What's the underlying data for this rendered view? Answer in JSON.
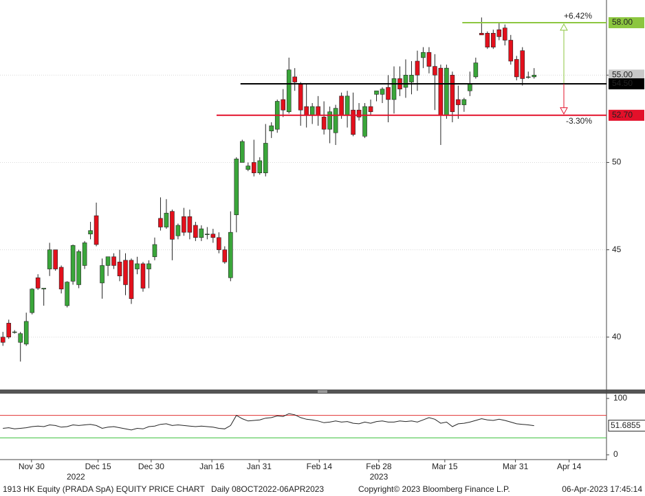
{
  "chart_data": [
    {
      "type": "candlestick",
      "ylim": [
        37,
        59.3
      ],
      "yticks": [
        40,
        45,
        50,
        {
          "value": 55,
          "label": "55.00"
        }
      ],
      "grid": true,
      "xlim": [
        -0.5,
        103.4
      ],
      "xticks": [
        {
          "value": 4.9,
          "label": "Nov 30"
        },
        {
          "value": 16.3,
          "label": "Dec 15"
        },
        {
          "value": 25.4,
          "label": "Dec 30"
        },
        {
          "value": 35.8,
          "label": "Jan 16"
        },
        {
          "value": 43.9,
          "label": "Jan 31"
        },
        {
          "value": 54.2,
          "label": "Feb 14"
        },
        {
          "value": 64.4,
          "label": "Feb 28"
        },
        {
          "value": 75.7,
          "label": "Mar 15"
        },
        {
          "value": 87.8,
          "label": "Mar 31"
        },
        {
          "value": 97.0,
          "label": "Apr 14"
        }
      ],
      "year_labels": [
        {
          "value": 12.5,
          "label": "2022"
        },
        {
          "value": 64.4,
          "label": "2023"
        }
      ],
      "up_color": "#3aa63a",
      "down_color": "#e3101c",
      "open": [
        40.0,
        40.8,
        40.3,
        39.7,
        39.6,
        41.4,
        43.4,
        42.75,
        43.9,
        45.0,
        44.0,
        41.8,
        43.2,
        43.0,
        44.1,
        45.9,
        46.95,
        43.1,
        44.1,
        44.6,
        44.3,
        44.4,
        44.4,
        43.9,
        44.2,
        43.9,
        44.6,
        46.8,
        46.3,
        47.2,
        45.8,
        46.9,
        46.9,
        46.4,
        45.7,
        45.9,
        45.9,
        45.7,
        45.0,
        43.4,
        47.0,
        50.0,
        49.6,
        50.0,
        49.4,
        49.4,
        51.8,
        51.9,
        53.6,
        52.9,
        54.9,
        54.5,
        53.2,
        52.7,
        53.2,
        52.6,
        51.9,
        51.7,
        53.8,
        52.7,
        53.0,
        53.0,
        51.5,
        53.2,
        53.9,
        53.9,
        54.3,
        53.6,
        54.8,
        54.3,
        54.6,
        55.8,
        56.0,
        56.3,
        55.5,
        55.4,
        52.7,
        55.0,
        53.6,
        53.3,
        54.1,
        54.9,
        57.4,
        57.4,
        57.4,
        57.6,
        57.7,
        57.0,
        55.9,
        56.4,
        54.9,
        54.9
      ],
      "high": [
        40.3,
        41.0,
        40.4,
        40.3,
        41.4,
        42.8,
        43.6,
        42.8,
        45.4,
        45.0,
        44.1,
        43.2,
        45.3,
        45.0,
        45.5,
        46.6,
        47.7,
        44.5,
        44.6,
        44.8,
        45.0,
        44.8,
        44.5,
        44.6,
        44.3,
        44.4,
        45.7,
        48.0,
        47.9,
        47.3,
        46.5,
        47.4,
        47.3,
        46.6,
        46.4,
        46.3,
        46.2,
        46.0,
        45.2,
        47.2,
        50.3,
        51.3,
        50.0,
        51.3,
        50.3,
        52.2,
        52.3,
        53.6,
        54.2,
        56.0,
        55.4,
        54.6,
        54.5,
        53.4,
        53.8,
        53.5,
        53.2,
        53.3,
        54.0,
        54.1,
        54.0,
        53.4,
        53.4,
        53.6,
        54.1,
        54.3,
        55.0,
        55.5,
        55.5,
        55.9,
        55.8,
        56.4,
        56.6,
        56.6,
        56.2,
        55.6,
        55.6,
        55.2,
        54.4,
        53.7,
        55.2,
        56.0,
        58.3,
        57.5,
        57.6,
        58.0,
        57.9,
        57.3,
        56.1,
        56.6,
        55.2,
        55.4
      ],
      "low": [
        39.5,
        39.9,
        40.2,
        38.6,
        39.5,
        41.3,
        42.7,
        41.8,
        43.5,
        43.8,
        42.5,
        41.7,
        43.0,
        42.8,
        43.9,
        45.6,
        45.2,
        42.2,
        43.5,
        43.9,
        43.2,
        42.4,
        41.9,
        43.6,
        42.6,
        42.8,
        44.4,
        46.1,
        46.2,
        44.4,
        45.6,
        45.8,
        45.6,
        45.5,
        45.5,
        45.6,
        45.4,
        44.8,
        44.2,
        43.2,
        46.0,
        50.0,
        49.5,
        49.2,
        49.3,
        49.2,
        51.4,
        51.7,
        52.6,
        52.8,
        54.1,
        52.1,
        52.0,
        52.2,
        52.1,
        51.6,
        51.1,
        51.0,
        52.5,
        52.0,
        51.5,
        52.4,
        51.4,
        52.7,
        53.5,
        53.4,
        52.3,
        52.8,
        53.8,
        53.7,
        53.9,
        54.1,
        55.4,
        55.1,
        53.0,
        51.0,
        52.5,
        52.3,
        52.5,
        52.9,
        53.8,
        54.8,
        57.3,
        56.5,
        56.5,
        57.0,
        56.7,
        55.6,
        54.7,
        54.4,
        54.8,
        54.8
      ],
      "close": [
        39.7,
        40.0,
        40.3,
        40.2,
        40.9,
        42.75,
        42.8,
        42.8,
        45.0,
        43.9,
        42.75,
        43.15,
        45.25,
        44.9,
        45.4,
        46.1,
        45.3,
        44.1,
        44.6,
        44.1,
        43.5,
        43.0,
        42.2,
        44.2,
        42.8,
        44.2,
        45.3,
        46.3,
        47.1,
        45.6,
        46.4,
        46.0,
        46.0,
        45.7,
        46.2,
        45.9,
        45.7,
        45.0,
        44.3,
        46.0,
        50.2,
        51.2,
        49.8,
        49.4,
        50.1,
        51.1,
        52.1,
        53.5,
        53.0,
        55.3,
        54.6,
        53.0,
        52.7,
        53.2,
        52.7,
        51.9,
        52.9,
        53.1,
        52.7,
        53.8,
        51.6,
        52.6,
        53.2,
        52.9,
        54.1,
        54.2,
        53.6,
        54.8,
        54.2,
        55.0,
        55.0,
        55.0,
        56.3,
        55.5,
        55.0,
        52.7,
        55.4,
        52.9,
        53.3,
        53.6,
        54.5,
        55.7,
        57.3,
        56.6,
        56.6,
        57.2,
        57.0,
        55.8,
        54.9,
        54.8,
        54.9,
        55.0
      ],
      "levels": [
        {
          "value": 58,
          "label": "58.00",
          "color": "#8cc63f",
          "x_start": 78.7,
          "change_label": "+6.42%"
        },
        {
          "value": 54.5,
          "label": "54.50",
          "color": "#000000",
          "x_start": 40.7
        },
        {
          "value": 52.7,
          "label": "52.70",
          "color": "#e3102a",
          "x_start": 36.6,
          "change_label": "-3.30%"
        }
      ]
    },
    {
      "type": "line",
      "ylim": [
        -7.3,
        107.3
      ],
      "yticks": [
        0,
        100
      ],
      "color": "#222222",
      "ref_lines": [
        {
          "value": 70,
          "color": "#e03030"
        },
        {
          "value": 30,
          "color": "#3cc03c"
        }
      ],
      "values": [
        47,
        48,
        46,
        47,
        48,
        50,
        51,
        50,
        53,
        52,
        49,
        50,
        53,
        52,
        53,
        54,
        52,
        47,
        49,
        50,
        48,
        46,
        44,
        47,
        46,
        50,
        51,
        54,
        55,
        52,
        53,
        52,
        51,
        50,
        51,
        50,
        49,
        47,
        46,
        52,
        70,
        64,
        60,
        61,
        62,
        65,
        66,
        69,
        68,
        73,
        71,
        66,
        63,
        62,
        60,
        57,
        58,
        60,
        58,
        59,
        56,
        55,
        58,
        56,
        59,
        60,
        58,
        58,
        60,
        59,
        60,
        58,
        62,
        66,
        63,
        56,
        58,
        50,
        55,
        56,
        58,
        61,
        64,
        62,
        61,
        63,
        61,
        58,
        55,
        54,
        53,
        51.6855
      ]
    }
  ],
  "footer": {
    "title": "1913 HK Equity (PRADA SpA) EQUITY PRICE CHART",
    "range": "Daily 08OCT2022-06APR2023",
    "copyright": "Copyright© 2023 Bloomberg Finance L.P.",
    "timestamp": "06-Apr-2023 17:45:14"
  }
}
